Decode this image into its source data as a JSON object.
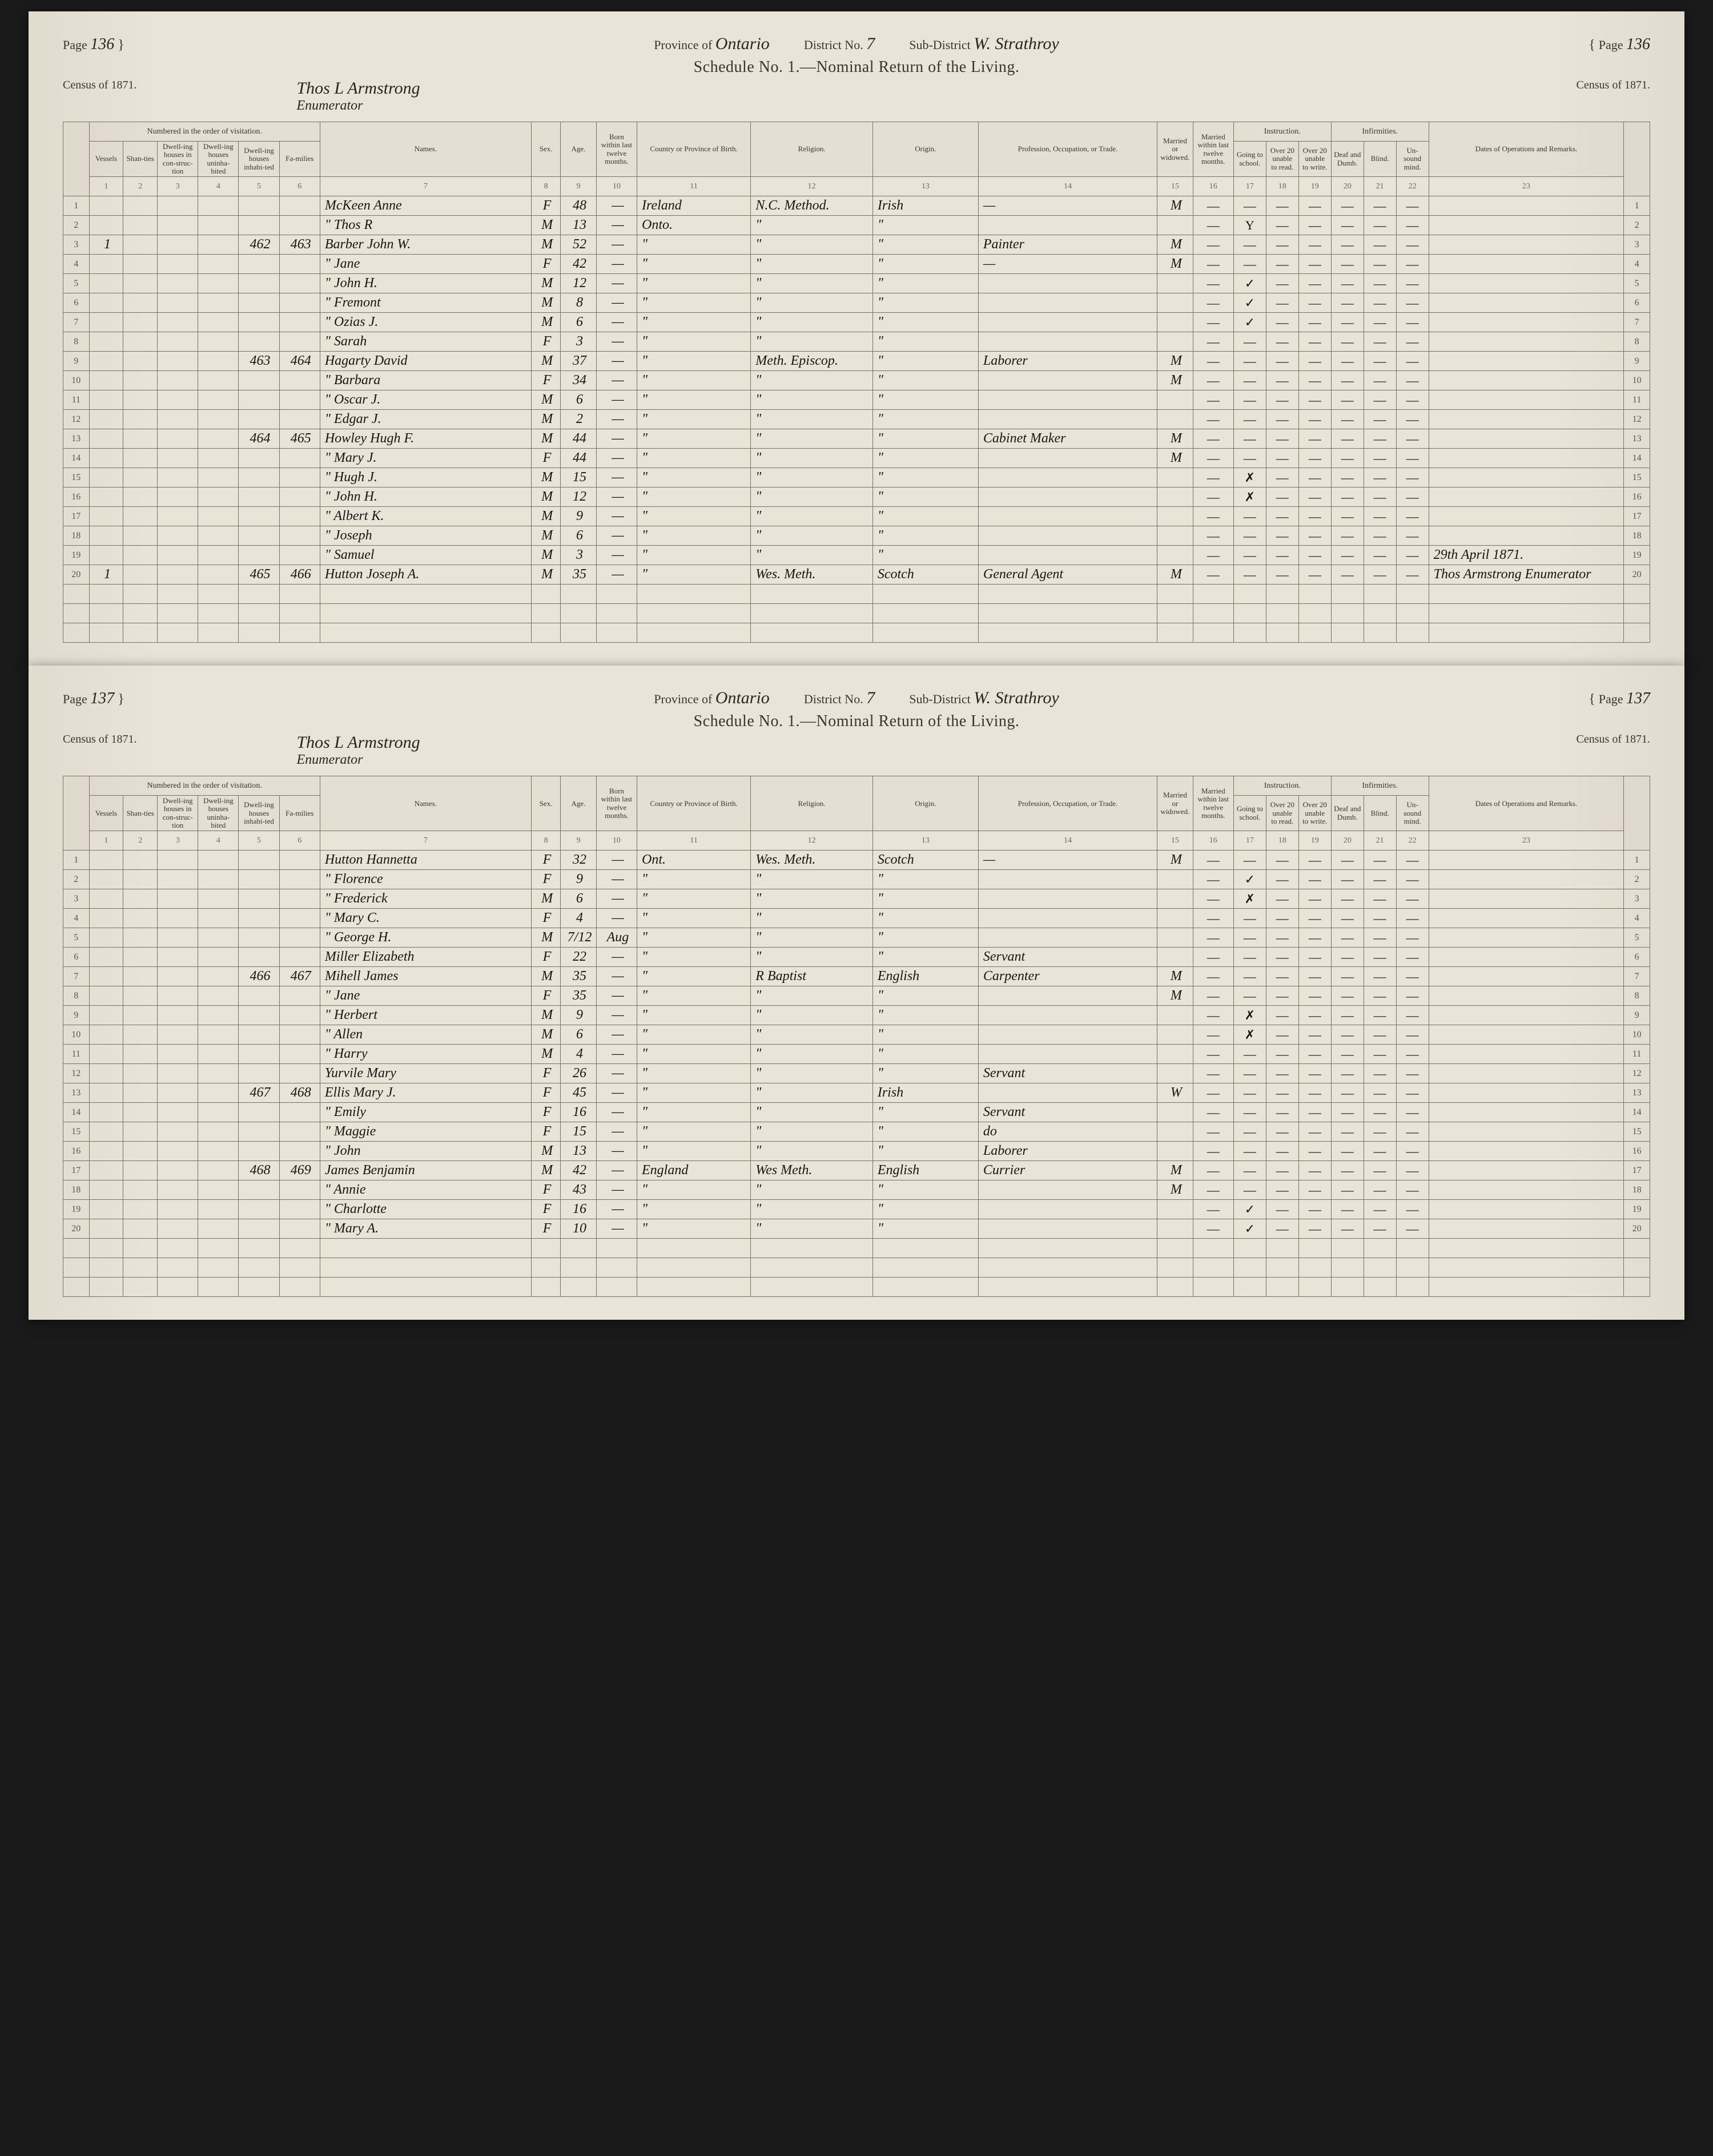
{
  "doc": {
    "province_label": "Province of",
    "province": "Ontario",
    "district_label": "District No.",
    "district": "7",
    "subdistrict_label": "Sub-District",
    "subdistrict": "W. Strathroy",
    "schedule_title": "Schedule No. 1.—Nominal Return of the Living.",
    "census_label": "Census of 1871.",
    "enumerator_name": "Thos L Armstrong",
    "enumerator_label": "Enumerator",
    "page_label": "Page"
  },
  "headers": {
    "group_numbered": "Numbered in the order of visitation.",
    "group_instruction": "Instruction.",
    "group_infirmities": "Infirmities.",
    "vessels": "Vessels",
    "shanties": "Shan-ties",
    "dwelling_constr": "Dwell-ing houses in con-struc-tion",
    "dwelling_uninhab": "Dwell-ing houses uninha-bited",
    "dwelling_inhab": "Dwell-ing houses inhabi-ted",
    "families": "Fa-milies",
    "names": "Names.",
    "sex": "Sex.",
    "age": "Age.",
    "born": "Born within last twelve months.",
    "country": "Country or Province of Birth.",
    "religion": "Religion.",
    "origin": "Origin.",
    "occupation": "Profession, Occupation, or Trade.",
    "married": "Married or widowed.",
    "married12": "Married within last twelve months.",
    "school": "Going to school.",
    "over20r": "Over 20 unable to read.",
    "over20w": "Over 20 unable to write.",
    "deaf": "Deaf and Dumb.",
    "blind": "Blind.",
    "unsound": "Un-sound mind.",
    "remarks": "Dates of Operations and Remarks."
  },
  "colnums": [
    "1",
    "2",
    "3",
    "4",
    "5",
    "6",
    "7",
    "8",
    "9",
    "10",
    "11",
    "12",
    "13",
    "14",
    "15",
    "16",
    "17",
    "18",
    "19",
    "20",
    "21",
    "22",
    "23"
  ],
  "pages": [
    {
      "pagenum": "136",
      "rows": [
        {
          "n": 1,
          "name": "McKeen Anne",
          "sex": "F",
          "age": "48",
          "born": "—",
          "country": "Ireland",
          "religion": "N.C. Method.",
          "origin": "Irish",
          "occ": "—",
          "mar": "M",
          "sch": "—"
        },
        {
          "n": 2,
          "name": "\"   Thos R",
          "sex": "M",
          "age": "13",
          "born": "—",
          "country": "Onto.",
          "religion": "\"",
          "origin": "\"",
          "occ": "",
          "mar": "",
          "sch": "Y"
        },
        {
          "n": 3,
          "vessel": "1",
          "dwell": "462",
          "fam": "463",
          "name": "Barber John W.",
          "sex": "M",
          "age": "52",
          "born": "—",
          "country": "\"",
          "religion": "\"",
          "origin": "\"",
          "occ": "Painter",
          "mar": "M",
          "sch": "—"
        },
        {
          "n": 4,
          "name": "\"   Jane",
          "sex": "F",
          "age": "42",
          "born": "—",
          "country": "\"",
          "religion": "\"",
          "origin": "\"",
          "occ": "—",
          "mar": "M",
          "sch": "—"
        },
        {
          "n": 5,
          "name": "\"   John H.",
          "sex": "M",
          "age": "12",
          "born": "—",
          "country": "\"",
          "religion": "\"",
          "origin": "\"",
          "occ": "",
          "mar": "",
          "sch": "✓"
        },
        {
          "n": 6,
          "name": "\"   Fremont",
          "sex": "M",
          "age": "8",
          "born": "—",
          "country": "\"",
          "religion": "\"",
          "origin": "\"",
          "occ": "",
          "mar": "",
          "sch": "✓"
        },
        {
          "n": 7,
          "name": "\"   Ozias J.",
          "sex": "M",
          "age": "6",
          "born": "—",
          "country": "\"",
          "religion": "\"",
          "origin": "\"",
          "occ": "",
          "mar": "",
          "sch": "✓"
        },
        {
          "n": 8,
          "name": "\"   Sarah",
          "sex": "F",
          "age": "3",
          "born": "—",
          "country": "\"",
          "religion": "\"",
          "origin": "\"",
          "occ": "",
          "mar": "",
          "sch": ""
        },
        {
          "n": 9,
          "dwell": "463",
          "fam": "464",
          "name": "Hagarty David",
          "sex": "M",
          "age": "37",
          "born": "—",
          "country": "\"",
          "religion": "Meth. Episcop.",
          "origin": "\"",
          "occ": "Laborer",
          "mar": "M",
          "sch": "—"
        },
        {
          "n": 10,
          "name": "\"   Barbara",
          "sex": "F",
          "age": "34",
          "born": "—",
          "country": "\"",
          "religion": "\"",
          "origin": "\"",
          "occ": "",
          "mar": "M",
          "sch": ""
        },
        {
          "n": 11,
          "name": "\"   Oscar J.",
          "sex": "M",
          "age": "6",
          "born": "—",
          "country": "\"",
          "religion": "\"",
          "origin": "\"",
          "occ": "",
          "mar": "",
          "sch": ""
        },
        {
          "n": 12,
          "name": "\"   Edgar J.",
          "sex": "M",
          "age": "2",
          "born": "—",
          "country": "\"",
          "religion": "\"",
          "origin": "\"",
          "occ": "",
          "mar": "",
          "sch": ""
        },
        {
          "n": 13,
          "dwell": "464",
          "fam": "465",
          "name": "Howley Hugh F.",
          "sex": "M",
          "age": "44",
          "born": "—",
          "country": "\"",
          "religion": "\"",
          "origin": "\"",
          "occ": "Cabinet Maker",
          "mar": "M",
          "sch": "—"
        },
        {
          "n": 14,
          "name": "\"   Mary J.",
          "sex": "F",
          "age": "44",
          "born": "—",
          "country": "\"",
          "religion": "\"",
          "origin": "\"",
          "occ": "",
          "mar": "M",
          "sch": ""
        },
        {
          "n": 15,
          "name": "\"   Hugh J.",
          "sex": "M",
          "age": "15",
          "born": "—",
          "country": "\"",
          "religion": "\"",
          "origin": "\"",
          "occ": "",
          "mar": "",
          "sch": "✗"
        },
        {
          "n": 16,
          "name": "\"   John H.",
          "sex": "M",
          "age": "12",
          "born": "—",
          "country": "\"",
          "religion": "\"",
          "origin": "\"",
          "occ": "",
          "mar": "",
          "sch": "✗"
        },
        {
          "n": 17,
          "name": "\"   Albert K.",
          "sex": "M",
          "age": "9",
          "born": "—",
          "country": "\"",
          "religion": "\"",
          "origin": "\"",
          "occ": "",
          "mar": "",
          "sch": ""
        },
        {
          "n": 18,
          "name": "\"   Joseph",
          "sex": "M",
          "age": "6",
          "born": "—",
          "country": "\"",
          "religion": "\"",
          "origin": "\"",
          "occ": "",
          "mar": "",
          "sch": ""
        },
        {
          "n": 19,
          "name": "\"   Samuel",
          "sex": "M",
          "age": "3",
          "born": "—",
          "country": "\"",
          "religion": "\"",
          "origin": "\"",
          "occ": "",
          "mar": "",
          "sch": "",
          "remarks": "29th April 1871."
        },
        {
          "n": 20,
          "vessel": "1",
          "dwell": "465",
          "fam": "466",
          "name": "Hutton Joseph A.",
          "sex": "M",
          "age": "35",
          "born": "—",
          "country": "\"",
          "religion": "Wes. Meth.",
          "origin": "Scotch",
          "occ": "General Agent",
          "mar": "M",
          "sch": "—",
          "remarks": "Thos Armstrong Enumerator"
        }
      ]
    },
    {
      "pagenum": "137",
      "rows": [
        {
          "n": 1,
          "name": "Hutton Hannetta",
          "sex": "F",
          "age": "32",
          "born": "—",
          "country": "Ont.",
          "religion": "Wes. Meth.",
          "origin": "Scotch",
          "occ": "—",
          "mar": "M",
          "sch": "—"
        },
        {
          "n": 2,
          "name": "\"   Florence",
          "sex": "F",
          "age": "9",
          "born": "—",
          "country": "\"",
          "religion": "\"",
          "origin": "\"",
          "occ": "",
          "mar": "",
          "sch": "✓"
        },
        {
          "n": 3,
          "name": "\"   Frederick",
          "sex": "M",
          "age": "6",
          "born": "—",
          "country": "\"",
          "religion": "\"",
          "origin": "\"",
          "occ": "",
          "mar": "",
          "sch": "✗"
        },
        {
          "n": 4,
          "name": "\"   Mary C.",
          "sex": "F",
          "age": "4",
          "born": "—",
          "country": "\"",
          "religion": "\"",
          "origin": "\"",
          "occ": "",
          "mar": "",
          "sch": ""
        },
        {
          "n": 5,
          "name": "\"   George H.",
          "sex": "M",
          "age": "7/12",
          "born": "Aug",
          "country": "\"",
          "religion": "\"",
          "origin": "\"",
          "occ": "",
          "mar": "",
          "sch": ""
        },
        {
          "n": 6,
          "name": "Miller Elizabeth",
          "sex": "F",
          "age": "22",
          "born": "—",
          "country": "\"",
          "religion": "\"",
          "origin": "\"",
          "occ": "Servant",
          "mar": "",
          "sch": ""
        },
        {
          "n": 7,
          "dwell": "466",
          "fam": "467",
          "name": "Mihell James",
          "sex": "M",
          "age": "35",
          "born": "—",
          "country": "\"",
          "religion": "R Baptist",
          "origin": "English",
          "occ": "Carpenter",
          "mar": "M",
          "sch": "—"
        },
        {
          "n": 8,
          "name": "\"   Jane",
          "sex": "F",
          "age": "35",
          "born": "—",
          "country": "\"",
          "religion": "\"",
          "origin": "\"",
          "occ": "",
          "mar": "M",
          "sch": ""
        },
        {
          "n": 9,
          "name": "\"   Herbert",
          "sex": "M",
          "age": "9",
          "born": "—",
          "country": "\"",
          "religion": "\"",
          "origin": "\"",
          "occ": "",
          "mar": "",
          "sch": "✗"
        },
        {
          "n": 10,
          "name": "\"   Allen",
          "sex": "M",
          "age": "6",
          "born": "—",
          "country": "\"",
          "religion": "\"",
          "origin": "\"",
          "occ": "",
          "mar": "",
          "sch": "✗"
        },
        {
          "n": 11,
          "name": "\"   Harry",
          "sex": "M",
          "age": "4",
          "born": "—",
          "country": "\"",
          "religion": "\"",
          "origin": "\"",
          "occ": "",
          "mar": "",
          "sch": ""
        },
        {
          "n": 12,
          "name": "Yurvile Mary",
          "sex": "F",
          "age": "26",
          "born": "—",
          "country": "\"",
          "religion": "\"",
          "origin": "\"",
          "occ": "Servant",
          "mar": "",
          "sch": ""
        },
        {
          "n": 13,
          "dwell": "467",
          "fam": "468",
          "name": "Ellis Mary J.",
          "sex": "F",
          "age": "45",
          "born": "—",
          "country": "\"",
          "religion": "\"",
          "origin": "Irish",
          "occ": "",
          "mar": "W",
          "sch": "—"
        },
        {
          "n": 14,
          "name": "\"   Emily",
          "sex": "F",
          "age": "16",
          "born": "—",
          "country": "\"",
          "religion": "\"",
          "origin": "\"",
          "occ": "Servant",
          "mar": "",
          "sch": ""
        },
        {
          "n": 15,
          "name": "\"   Maggie",
          "sex": "F",
          "age": "15",
          "born": "—",
          "country": "\"",
          "religion": "\"",
          "origin": "\"",
          "occ": "do",
          "mar": "",
          "sch": ""
        },
        {
          "n": 16,
          "name": "\"   John",
          "sex": "M",
          "age": "13",
          "born": "—",
          "country": "\"",
          "religion": "\"",
          "origin": "\"",
          "occ": "Laborer",
          "mar": "",
          "sch": ""
        },
        {
          "n": 17,
          "dwell": "468",
          "fam": "469",
          "name": "James Benjamin",
          "sex": "M",
          "age": "42",
          "born": "—",
          "country": "England",
          "religion": "Wes Meth.",
          "origin": "English",
          "occ": "Currier",
          "mar": "M",
          "sch": "—"
        },
        {
          "n": 18,
          "name": "\"   Annie",
          "sex": "F",
          "age": "43",
          "born": "—",
          "country": "\"",
          "religion": "\"",
          "origin": "\"",
          "occ": "",
          "mar": "M",
          "sch": ""
        },
        {
          "n": 19,
          "name": "\"   Charlotte",
          "sex": "F",
          "age": "16",
          "born": "—",
          "country": "\"",
          "religion": "\"",
          "origin": "\"",
          "occ": "",
          "mar": "",
          "sch": "✓"
        },
        {
          "n": 20,
          "name": "\"   Mary A.",
          "sex": "F",
          "age": "10",
          "born": "—",
          "country": "\"",
          "religion": "\"",
          "origin": "\"",
          "occ": "",
          "mar": "",
          "sch": "✓"
        }
      ]
    }
  ]
}
